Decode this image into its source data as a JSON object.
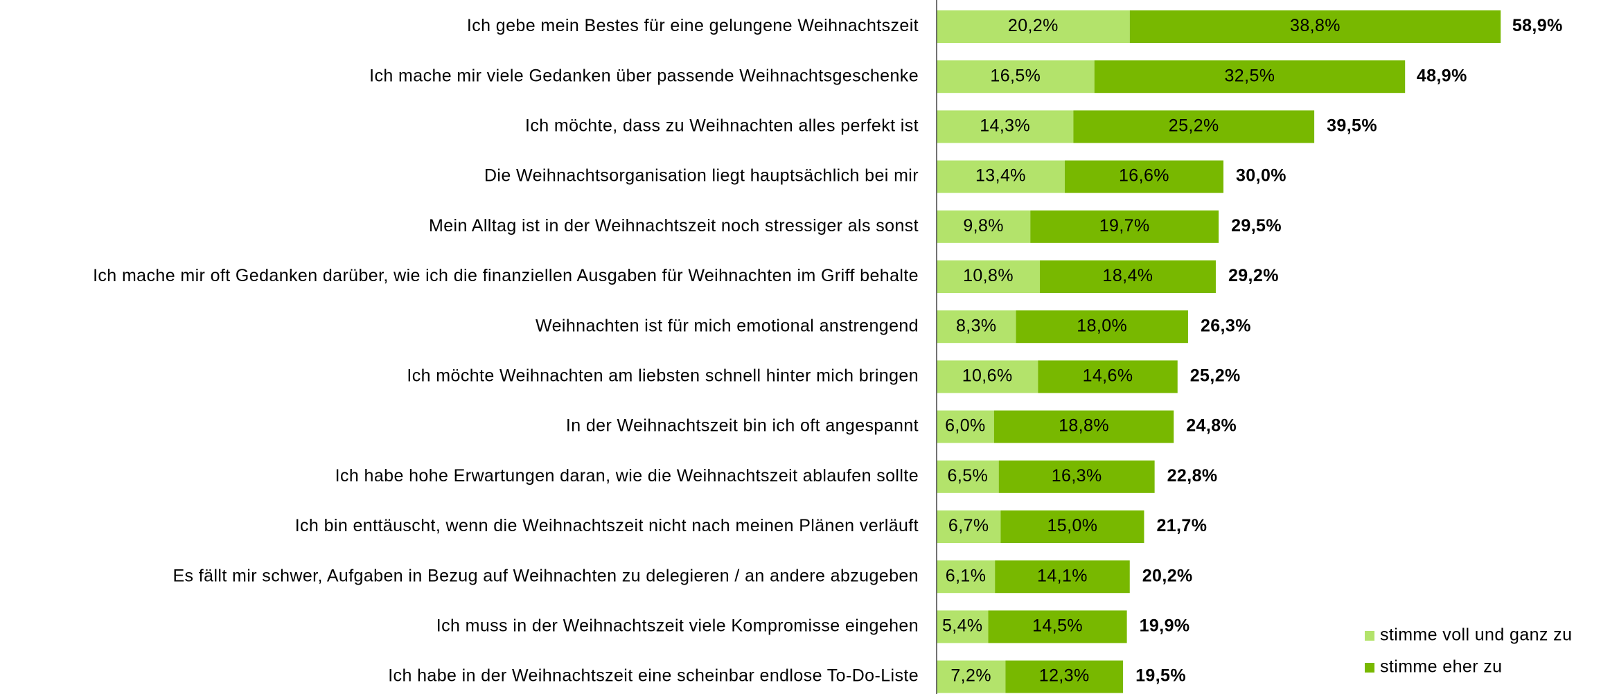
{
  "chart_data": {
    "type": "stacked_barh",
    "categories": [
      "Ich gebe mein Bestes für eine gelungene Weihnachtszeit",
      "Ich mache mir viele Gedanken über passende Weihnachtsgeschenke",
      "Ich möchte, dass zu Weihnachten alles perfekt ist",
      "Die Weihnachtsorganisation liegt hauptsächlich bei mir",
      "Mein Alltag ist in der Weihnachtszeit noch stressiger als sonst",
      "Ich mache mir oft Gedanken darüber, wie ich die finanziellen Ausgaben für Weihnachten im Griff behalte",
      "Weihnachten ist für mich emotional anstrengend",
      "Ich möchte Weihnachten am liebsten schnell hinter mich bringen",
      "In der Weihnachtszeit bin ich oft angespannt",
      "Ich habe hohe Erwartungen daran, wie die Weihnachtszeit ablaufen sollte",
      "Ich bin enttäuscht, wenn die Weihnachtszeit nicht nach meinen Plänen verläuft",
      "Es fällt mir schwer, Aufgaben in Bezug auf Weihnachten zu delegieren / an andere abzugeben",
      "Ich muss in der Weihnachtszeit viele Kompromisse eingehen",
      "Ich habe in der Weihnachtszeit eine scheinbar endlose To-Do-Liste"
    ],
    "series": [
      {
        "name": "stimme voll und ganz zu",
        "color": "#b3e36b",
        "values": [
          20.2,
          16.5,
          14.3,
          13.4,
          9.8,
          10.8,
          8.3,
          10.6,
          6.0,
          6.5,
          6.7,
          6.1,
          5.4,
          7.2
        ],
        "value_labels": [
          "20,2%",
          "16,5%",
          "14,3%",
          "13,4%",
          "9,8%",
          "10,8%",
          "8,3%",
          "10,6%",
          "6,0%",
          "6,5%",
          "6,7%",
          "6,1%",
          "5,4%",
          "7,2%"
        ]
      },
      {
        "name": "stimme eher zu",
        "color": "#78b800",
        "values": [
          38.8,
          32.5,
          25.2,
          16.6,
          19.7,
          18.4,
          18.0,
          14.6,
          18.8,
          16.3,
          15.0,
          14.1,
          14.5,
          12.3
        ],
        "value_labels": [
          "38,8%",
          "32,5%",
          "25,2%",
          "16,6%",
          "19,7%",
          "18,4%",
          "18,0%",
          "14,6%",
          "18,8%",
          "16,3%",
          "15,0%",
          "14,1%",
          "14,5%",
          "12,3%"
        ]
      }
    ],
    "totals": {
      "values": [
        58.9,
        48.9,
        39.5,
        30.0,
        29.5,
        29.2,
        26.3,
        25.2,
        24.8,
        22.8,
        21.7,
        20.2,
        19.9,
        19.5
      ],
      "value_labels": [
        "58,9%",
        "48,9%",
        "39,5%",
        "30,0%",
        "29,5%",
        "29,2%",
        "26,3%",
        "25,2%",
        "24,8%",
        "22,8%",
        "21,7%",
        "20,2%",
        "19,9%",
        "19,5%"
      ]
    },
    "legend": "lower right"
  }
}
